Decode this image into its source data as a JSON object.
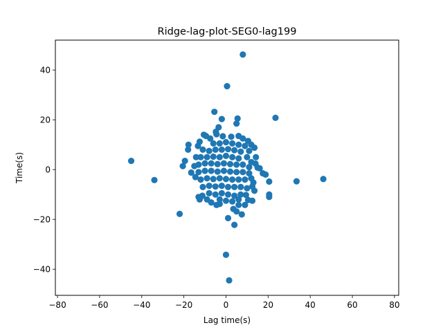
{
  "chart_data": {
    "type": "scatter",
    "title": "Ridge-lag-plot-SEG0-lag199",
    "xlabel": "Lag time(s)",
    "ylabel": "Time(s)",
    "xlim": [
      -81,
      82
    ],
    "ylim": [
      -50.5,
      52
    ],
    "xticks": [
      -80,
      -60,
      -40,
      -20,
      0,
      20,
      40,
      60,
      80
    ],
    "yticks": [
      -40,
      -20,
      0,
      20,
      40
    ],
    "xtick_labels": [
      "−80",
      "−60",
      "−40",
      "−20",
      "0",
      "20",
      "40",
      "60",
      "80"
    ],
    "ytick_labels": [
      "−40",
      "−20",
      "0",
      "20",
      "40"
    ],
    "grid": false,
    "legend": false,
    "colors": {
      "marker": "#1f77b4",
      "axes": "#000000",
      "background": "#ffffff"
    },
    "points": [
      [
        8,
        46.2
      ],
      [
        0.5,
        33.5
      ],
      [
        -5.5,
        23.2
      ],
      [
        23.5,
        20.8
      ],
      [
        5.5,
        20.5
      ],
      [
        -2,
        20.3
      ],
      [
        5,
        18.5
      ],
      [
        -3.5,
        17
      ],
      [
        -4.8,
        15.2
      ],
      [
        -10.5,
        14
      ],
      [
        -17.8,
        10
      ],
      [
        -18,
        8
      ],
      [
        -45,
        3.5
      ],
      [
        -34,
        -4.2
      ],
      [
        -22,
        -17.8
      ],
      [
        -19.5,
        3.5
      ],
      [
        -20.5,
        1.4
      ],
      [
        33.5,
        -4.7
      ],
      [
        46.2,
        -3.8
      ],
      [
        20.5,
        -4.8
      ],
      [
        20.5,
        -10
      ],
      [
        20.5,
        -11
      ],
      [
        18.8,
        -2
      ],
      [
        17.5,
        -1.5
      ],
      [
        16,
        0.5
      ],
      [
        14,
        2.4
      ],
      [
        7.5,
        -18
      ],
      [
        1,
        -19.5
      ],
      [
        4,
        -22.2
      ],
      [
        0,
        -34.2
      ],
      [
        1.5,
        -44.5
      ],
      [
        13.5,
        -8.5
      ],
      [
        12.5,
        -12.5
      ],
      [
        -13,
        -11
      ],
      [
        -12.5,
        -12
      ],
      [
        -11.2,
        -10.5
      ],
      [
        -9,
        -12
      ],
      [
        -7,
        -13.2
      ],
      [
        -4.5,
        -14.2
      ],
      [
        -3,
        -13.8
      ],
      [
        3.5,
        -15.8
      ],
      [
        5,
        -16.8
      ],
      [
        6,
        -14.2
      ],
      [
        9,
        -14.2
      ],
      [
        10.5,
        -12.2
      ],
      [
        12.5,
        -6.8
      ],
      [
        13,
        -5.2
      ],
      [
        -14.5,
        -3
      ],
      [
        -15,
        1.4
      ],
      [
        -14.2,
        5
      ],
      [
        -13.3,
        9.5
      ],
      [
        -12.5,
        11.2
      ],
      [
        -9.5,
        13.5
      ],
      [
        -7.5,
        12.5
      ],
      [
        -4.5,
        14.2
      ],
      [
        -1.5,
        13.4
      ],
      [
        2.5,
        13.2
      ],
      [
        6,
        13.5
      ],
      [
        8,
        12.5
      ],
      [
        10.5,
        11.5
      ],
      [
        12,
        10
      ],
      [
        13.5,
        8.8
      ],
      [
        14.2,
        5
      ],
      [
        15,
        0.8
      ],
      [
        -16.5,
        -1.2
      ],
      [
        -6,
        10.5
      ],
      [
        -3,
        10.5
      ],
      [
        0,
        11
      ],
      [
        3,
        10.5
      ],
      [
        6,
        10
      ],
      [
        9,
        9.5
      ],
      [
        11,
        7.5
      ],
      [
        -11,
        8
      ],
      [
        -8,
        7.5
      ],
      [
        -5,
        8
      ],
      [
        -2,
        8
      ],
      [
        1,
        8.2
      ],
      [
        4,
        7.8
      ],
      [
        7,
        7.2
      ],
      [
        10,
        5
      ],
      [
        -12,
        5
      ],
      [
        -9,
        5
      ],
      [
        -6,
        5.2
      ],
      [
        -3,
        5
      ],
      [
        0,
        5.5
      ],
      [
        3,
        5
      ],
      [
        6,
        4.5
      ],
      [
        12,
        3
      ],
      [
        -13,
        2
      ],
      [
        -10,
        2.5
      ],
      [
        -7,
        2.5
      ],
      [
        -4,
        2.2
      ],
      [
        -1,
        2.5
      ],
      [
        2,
        2.2
      ],
      [
        5,
        2
      ],
      [
        8,
        2
      ],
      [
        11,
        1
      ],
      [
        -13,
        -1
      ],
      [
        -10,
        -0.5
      ],
      [
        -7,
        -0.5
      ],
      [
        -4,
        -0.8
      ],
      [
        -1,
        -0.5
      ],
      [
        2,
        -0.8
      ],
      [
        5,
        -1
      ],
      [
        8,
        -1
      ],
      [
        11,
        -1.5
      ],
      [
        -12,
        -4
      ],
      [
        -9,
        -3.5
      ],
      [
        -6,
        -3.8
      ],
      [
        -3,
        -3.5
      ],
      [
        0,
        -3.8
      ],
      [
        3,
        -4
      ],
      [
        6,
        -4
      ],
      [
        9,
        -4
      ],
      [
        12,
        -3.5
      ],
      [
        -11,
        -7
      ],
      [
        -8,
        -6.5
      ],
      [
        -5,
        -6.8
      ],
      [
        -2,
        -6.5
      ],
      [
        1,
        -7
      ],
      [
        4,
        -7
      ],
      [
        7,
        -7
      ],
      [
        10,
        -7.5
      ],
      [
        -8,
        -9.5
      ],
      [
        -5,
        -10
      ],
      [
        -2,
        -9.5
      ],
      [
        1,
        -10
      ],
      [
        4,
        -10.5
      ],
      [
        7,
        -10
      ],
      [
        9.5,
        -10.2
      ],
      [
        -3,
        -12
      ],
      [
        0,
        -12.5
      ],
      [
        3,
        -12.8
      ],
      [
        6,
        -12
      ]
    ]
  }
}
